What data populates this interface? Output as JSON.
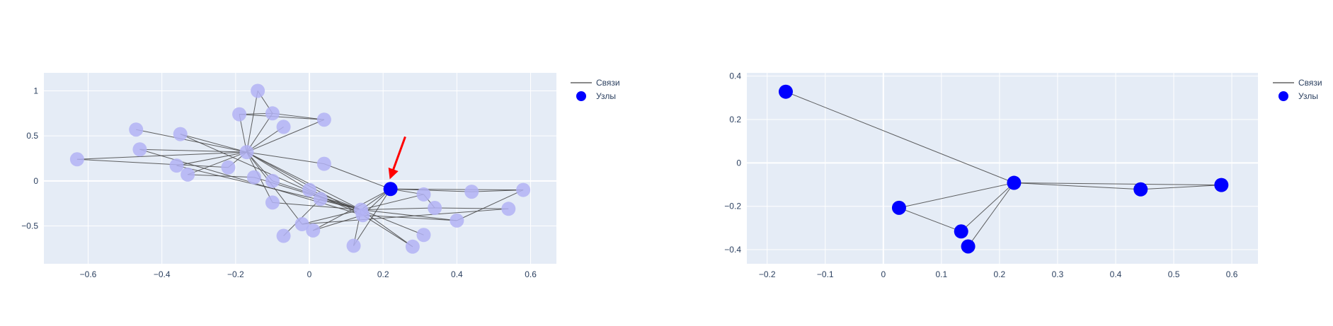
{
  "colors": {
    "plot_bg": "#e5ecf6",
    "grid": "#ffffff",
    "node": "#0000ff",
    "node_faded": "#b3b3f5",
    "edge": "#444444",
    "arrow": "#ff0000",
    "text": "#2a3f5f"
  },
  "chart_data": [
    {
      "type": "scatter",
      "xlim": [
        -0.72,
        0.67
      ],
      "ylim": [
        -0.92,
        1.2
      ],
      "x_ticks": [
        -0.6,
        -0.4,
        -0.2,
        0,
        0.2,
        0.4,
        0.6
      ],
      "x_tick_labels": [
        "−0.6",
        "−0.4",
        "−0.2",
        "0",
        "0.2",
        "0.4",
        "0.6"
      ],
      "y_ticks": [
        -0.5,
        0,
        0.5,
        1
      ],
      "y_tick_labels": [
        "−0.5",
        "0",
        "0.5",
        "1"
      ],
      "grid": true,
      "legend": {
        "position": "top-right",
        "items": [
          {
            "label": "Связи",
            "kind": "line"
          },
          {
            "label": "Узлы",
            "kind": "marker"
          }
        ]
      },
      "nodes": [
        {
          "x": 0.22,
          "y": -0.09,
          "highlight": true
        },
        {
          "x": -0.63,
          "y": 0.24
        },
        {
          "x": -0.47,
          "y": 0.57
        },
        {
          "x": -0.46,
          "y": 0.35
        },
        {
          "x": -0.36,
          "y": 0.17
        },
        {
          "x": -0.35,
          "y": 0.52
        },
        {
          "x": -0.33,
          "y": 0.07
        },
        {
          "x": -0.22,
          "y": 0.15
        },
        {
          "x": -0.19,
          "y": 0.74
        },
        {
          "x": -0.17,
          "y": 0.32
        },
        {
          "x": -0.14,
          "y": 1.0
        },
        {
          "x": -0.15,
          "y": 0.04
        },
        {
          "x": -0.1,
          "y": 0.75
        },
        {
          "x": -0.1,
          "y": 0.0
        },
        {
          "x": -0.1,
          "y": -0.24
        },
        {
          "x": -0.07,
          "y": 0.6
        },
        {
          "x": -0.07,
          "y": -0.61
        },
        {
          "x": -0.02,
          "y": -0.48
        },
        {
          "x": 0.0,
          "y": -0.1
        },
        {
          "x": 0.01,
          "y": -0.55
        },
        {
          "x": 0.03,
          "y": -0.2
        },
        {
          "x": 0.04,
          "y": 0.68
        },
        {
          "x": 0.04,
          "y": 0.19
        },
        {
          "x": 0.12,
          "y": -0.72
        },
        {
          "x": 0.14,
          "y": -0.32
        },
        {
          "x": 0.145,
          "y": -0.38
        },
        {
          "x": 0.28,
          "y": -0.73
        },
        {
          "x": 0.31,
          "y": -0.15
        },
        {
          "x": 0.31,
          "y": -0.6
        },
        {
          "x": 0.34,
          "y": -0.3
        },
        {
          "x": 0.4,
          "y": -0.44
        },
        {
          "x": 0.44,
          "y": -0.12
        },
        {
          "x": 0.54,
          "y": -0.31
        },
        {
          "x": 0.58,
          "y": -0.1
        }
      ],
      "edges": [
        [
          1,
          9
        ],
        [
          1,
          7
        ],
        [
          2,
          9
        ],
        [
          3,
          9
        ],
        [
          3,
          25
        ],
        [
          4,
          9
        ],
        [
          4,
          24
        ],
        [
          5,
          9
        ],
        [
          5,
          25
        ],
        [
          6,
          9
        ],
        [
          6,
          11
        ],
        [
          7,
          9
        ],
        [
          8,
          9
        ],
        [
          8,
          12
        ],
        [
          8,
          21
        ],
        [
          10,
          9
        ],
        [
          10,
          12
        ],
        [
          12,
          9
        ],
        [
          12,
          21
        ],
        [
          15,
          9
        ],
        [
          21,
          9
        ],
        [
          9,
          13
        ],
        [
          9,
          14
        ],
        [
          9,
          17
        ],
        [
          9,
          18
        ],
        [
          9,
          22
        ],
        [
          9,
          24
        ],
        [
          9,
          25
        ],
        [
          11,
          24
        ],
        [
          13,
          24
        ],
        [
          14,
          24
        ],
        [
          16,
          20
        ],
        [
          17,
          24
        ],
        [
          17,
          32
        ],
        [
          18,
          24
        ],
        [
          19,
          25
        ],
        [
          19,
          0
        ],
        [
          20,
          24
        ],
        [
          22,
          0
        ],
        [
          23,
          24
        ],
        [
          23,
          0
        ],
        [
          24,
          26
        ],
        [
          24,
          27
        ],
        [
          24,
          28
        ],
        [
          24,
          29
        ],
        [
          25,
          26
        ],
        [
          25,
          30
        ],
        [
          0,
          31
        ],
        [
          0,
          33
        ],
        [
          0,
          25
        ],
        [
          0,
          24
        ],
        [
          0,
          27
        ],
        [
          27,
          29
        ],
        [
          29,
          32
        ],
        [
          31,
          33
        ],
        [
          30,
          33
        ],
        [
          24,
          30
        ]
      ],
      "arrow": {
        "from": [
          0.26,
          0.49
        ],
        "to": [
          0.22,
          0.04
        ]
      }
    },
    {
      "type": "scatter",
      "xlim": [
        -0.235,
        0.645
      ],
      "ylim": [
        -0.465,
        0.415
      ],
      "x_ticks": [
        -0.2,
        -0.1,
        0,
        0.1,
        0.2,
        0.3,
        0.4,
        0.5,
        0.6
      ],
      "x_tick_labels": [
        "−0.2",
        "−0.1",
        "0",
        "0.1",
        "0.2",
        "0.3",
        "0.4",
        "0.5",
        "0.6"
      ],
      "y_ticks": [
        -0.4,
        -0.2,
        0,
        0.2,
        0.4
      ],
      "y_tick_labels": [
        "−0.4",
        "−0.2",
        "0",
        "0.2",
        "0.4"
      ],
      "grid": true,
      "legend": {
        "position": "top-right",
        "items": [
          {
            "label": "Связи",
            "kind": "line"
          },
          {
            "label": "Узлы",
            "kind": "marker"
          }
        ]
      },
      "nodes": [
        {
          "x": 0.225,
          "y": -0.092
        },
        {
          "x": -0.168,
          "y": 0.328
        },
        {
          "x": 0.027,
          "y": -0.207
        },
        {
          "x": 0.134,
          "y": -0.316
        },
        {
          "x": 0.146,
          "y": -0.385
        },
        {
          "x": 0.443,
          "y": -0.122
        },
        {
          "x": 0.582,
          "y": -0.102
        }
      ],
      "edges": [
        [
          0,
          1
        ],
        [
          0,
          2
        ],
        [
          0,
          3
        ],
        [
          0,
          4
        ],
        [
          0,
          5
        ],
        [
          0,
          6
        ],
        [
          2,
          3
        ],
        [
          5,
          6
        ]
      ]
    }
  ]
}
